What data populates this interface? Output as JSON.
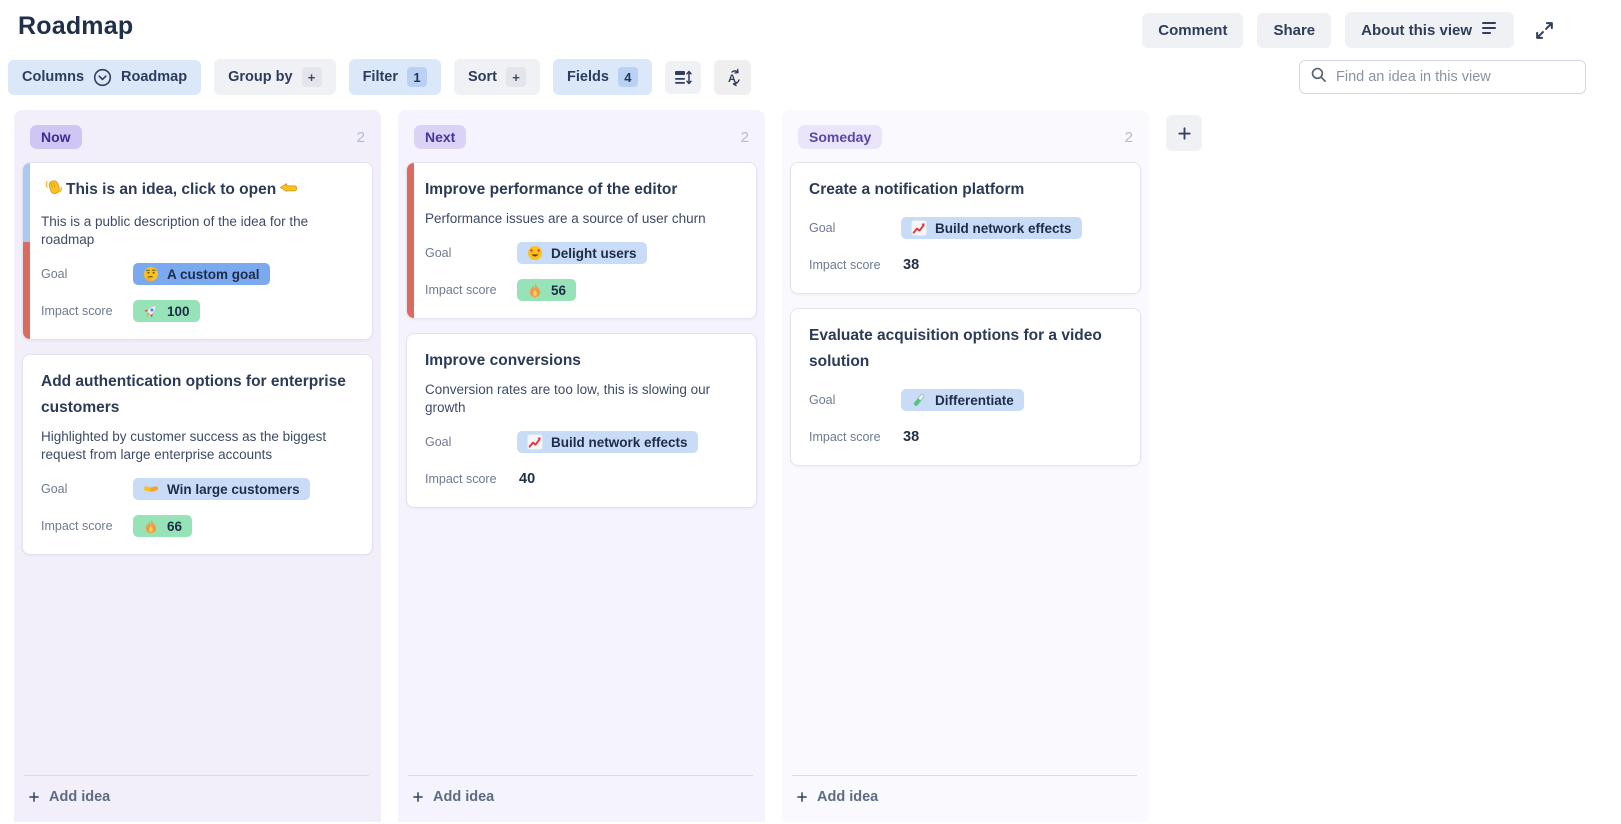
{
  "header": {
    "title": "Roadmap",
    "comment_label": "Comment",
    "share_label": "Share",
    "about_label": "About this view",
    "about_icon": "align-left",
    "expand_icon": "expand"
  },
  "toolbar": {
    "columns_button": {
      "label": "Columns",
      "icon": "chevron-down-circle",
      "value": "Roadmap"
    },
    "group_by": {
      "label": "Group by",
      "chip": "+"
    },
    "filter": {
      "label": "Filter",
      "chip": "1"
    },
    "sort": {
      "label": "Sort",
      "chip": "+"
    },
    "fields": {
      "label": "Fields",
      "chip": "4"
    },
    "icon_buttons": [
      {
        "name": "row-height"
      },
      {
        "name": "auto-sort"
      }
    ],
    "search": {
      "icon": "search",
      "placeholder": "Find an idea in this view"
    }
  },
  "labels": {
    "goal": "Goal",
    "impact": "Impact score",
    "add_idea": "Add idea"
  },
  "board": {
    "add_column_icon": "plus",
    "add_idea_icon": "plus",
    "columns": [
      {
        "name": "Now",
        "count": "2",
        "cards": [
          {
            "title_prefix_icon": "wave",
            "title": "This is an idea, click to open",
            "title_suffix_icon": "point-left",
            "description": "This is a public description of the idea for the roadmap",
            "goal": {
              "icon": "thinking-face",
              "label": "A custom goal"
            },
            "impact": {
              "icon": "rocket",
              "value": "100"
            }
          },
          {
            "title": "Add authentication options for enterprise customers",
            "description": "Highlighted by customer success as the biggest request from large enterprise accounts",
            "goal": {
              "icon": "handshake",
              "label": "Win large customers"
            },
            "impact": {
              "icon": "fire",
              "value": "66"
            }
          }
        ]
      },
      {
        "name": "Next",
        "count": "2",
        "cards": [
          {
            "title": "Improve performance of the editor",
            "description": "Performance issues are a source of user churn",
            "goal": {
              "icon": "heart-eyes",
              "label": "Delight users"
            },
            "impact": {
              "icon": "fire",
              "value": "56"
            }
          },
          {
            "title": "Improve conversions",
            "description": "Conversion rates are too low, this is slowing our growth",
            "goal": {
              "icon": "chart-increasing",
              "label": "Build network effects"
            },
            "impact": {
              "value": "40"
            }
          }
        ]
      },
      {
        "name": "Someday",
        "count": "2",
        "cards": [
          {
            "title": "Create a notification platform",
            "goal": {
              "icon": "chart-increasing",
              "label": "Build network effects"
            },
            "impact": {
              "value": "38"
            }
          },
          {
            "title": "Evaluate acquisition options for a video solution",
            "goal": {
              "icon": "test-tube",
              "label": "Differentiate"
            },
            "impact": {
              "value": "38"
            }
          }
        ]
      }
    ]
  },
  "colors": {
    "accent_blue": "#a9c9f1",
    "accent_red": "#dc6a5e",
    "goal_badge_blue": "#c8dcf8",
    "goal_badge_custom_blue": "#7aa9f0",
    "impact_badge_green": "#96e3b8",
    "toolbar_active_blue": "#dbe8f9",
    "button_gray": "#f0f1f4",
    "column_now_bg": "#f2effb",
    "column_next_bg": "#f5f3fd",
    "column_someday_bg": "#faf9fe",
    "column_badge_purple": "#d1c5f3"
  }
}
